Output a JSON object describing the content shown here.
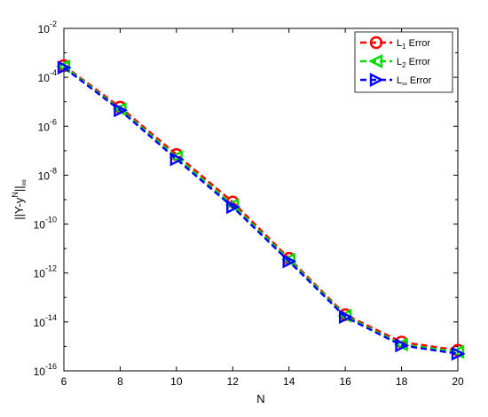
{
  "chart_data": {
    "type": "line",
    "xlabel": "N",
    "ylabel": "||Y-y^N||_∞",
    "ylabel_parts": {
      "pre": "||Y-y",
      "sup": "N",
      "mid": "||",
      "sub": "∞"
    },
    "x": [
      6,
      8,
      10,
      12,
      14,
      16,
      18,
      20
    ],
    "xlim": [
      6,
      20
    ],
    "xticks": [
      "6",
      "8",
      "10",
      "12",
      "14",
      "16",
      "18",
      "20"
    ],
    "yscale": "log",
    "ylim": [
      1e-16,
      0.01
    ],
    "yticks": [
      {
        "base": "10",
        "exp": "-2"
      },
      {
        "base": "10",
        "exp": "-4"
      },
      {
        "base": "10",
        "exp": "-6"
      },
      {
        "base": "10",
        "exp": "-8"
      },
      {
        "base": "10",
        "exp": "-10"
      },
      {
        "base": "10",
        "exp": "-12"
      },
      {
        "base": "10",
        "exp": "-14"
      },
      {
        "base": "10",
        "exp": "-16"
      }
    ],
    "grid": false,
    "legend_position": "top-right",
    "series": [
      {
        "name": "L1 Error",
        "label_main": "L",
        "label_sub": "1",
        "label_rest": " Error",
        "color": "#ff0000",
        "marker": "circle",
        "linestyle": "dashed",
        "values": [
          0.0003,
          6e-06,
          7e-08,
          8e-10,
          4e-12,
          2e-14,
          1.5e-15,
          7e-16
        ]
      },
      {
        "name": "L2 Error",
        "label_main": "L",
        "label_sub": "2",
        "label_rest": " Error",
        "color": "#00dd00",
        "marker": "triangle-left",
        "linestyle": "dashed",
        "values": [
          0.00028,
          5e-06,
          5.5e-08,
          6e-10,
          3.5e-12,
          1.8e-14,
          1.2e-15,
          6e-16
        ]
      },
      {
        "name": "L∞ Error",
        "label_main": "L",
        "label_sub": "∞",
        "label_rest": " Error",
        "color": "#0000ff",
        "marker": "triangle-right",
        "linestyle": "dashed",
        "values": [
          0.00025,
          4.5e-06,
          4.5e-08,
          5e-10,
          3e-12,
          1.6e-14,
          1.1e-15,
          5e-16
        ]
      }
    ]
  }
}
